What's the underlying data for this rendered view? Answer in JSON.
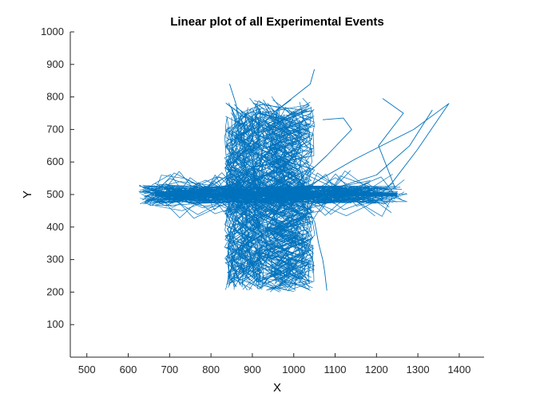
{
  "chart_data": {
    "type": "line",
    "title": "Linear plot of all Experimental Events",
    "xlabel": "X",
    "ylabel": "Y",
    "xlim": [
      460,
      1460
    ],
    "ylim": [
      0,
      1000
    ],
    "x_ticks": [
      500,
      600,
      700,
      800,
      900,
      1000,
      1100,
      1200,
      1300,
      1400
    ],
    "y_ticks": [
      100,
      200,
      300,
      400,
      500,
      600,
      700,
      800,
      900,
      1000
    ],
    "grid": false,
    "color": "#0072BD",
    "clusters": {
      "horizontal_band": {
        "x_range": [
          625,
          1290
        ],
        "y_range": [
          415,
          585
        ],
        "center_y": 500
      },
      "vertical_band_left": {
        "x_range": [
          830,
          920
        ],
        "y_range": [
          205,
          805
        ],
        "center_x": 880
      },
      "vertical_band_right": {
        "x_range": [
          930,
          1075
        ],
        "y_range": [
          200,
          810
        ],
        "center_x": 975
      }
    },
    "series": [
      {
        "x": [
          845,
          860,
          872,
          880,
          895,
          905,
          935,
          960,
          1000,
          1040,
          1050
        ],
        "y": [
          840,
          780,
          700,
          600,
          520,
          480,
          600,
          760,
          800,
          840,
          885
        ]
      },
      {
        "x": [
          1000,
          1150,
          1290,
          1375,
          1300,
          1240,
          1210
        ],
        "y": [
          500,
          610,
          700,
          780,
          640,
          540,
          500
        ]
      },
      {
        "x": [
          1215,
          1265,
          1205,
          1245
        ],
        "y": [
          795,
          750,
          650,
          520
        ]
      },
      {
        "x": [
          1335,
          1280,
          1200,
          1100,
          1000
        ],
        "y": [
          760,
          650,
          560,
          520,
          500
        ]
      },
      {
        "x": [
          1070,
          1120,
          1140,
          1080,
          1030
        ],
        "y": [
          730,
          735,
          700,
          620,
          560
        ]
      },
      {
        "x": [
          875,
          878,
          870,
          880,
          885,
          880
        ],
        "y": [
          215,
          260,
          300,
          350,
          420,
          500
        ]
      },
      {
        "x": [
          1080,
          1075,
          1070,
          1060,
          1050
        ],
        "y": [
          205,
          260,
          300,
          350,
          420
        ]
      }
    ]
  }
}
